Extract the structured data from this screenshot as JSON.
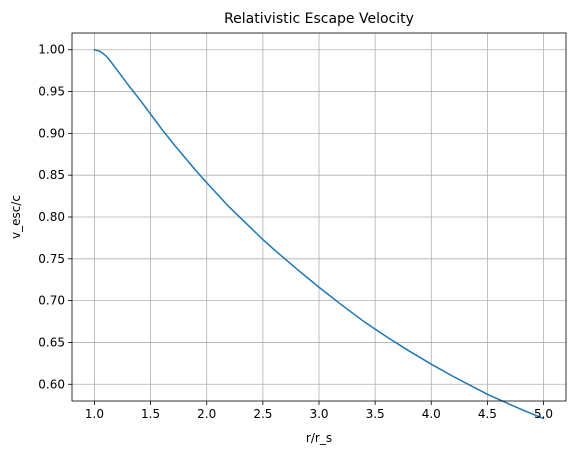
{
  "chart_data": {
    "type": "line",
    "title": "Relativistic Escape Velocity",
    "xlabel": "r/r_s",
    "ylabel": "v_esc/c",
    "xlim": [
      0.8,
      5.2
    ],
    "ylim": [
      0.58,
      1.02
    ],
    "grid": true,
    "x_ticks": [
      1.0,
      1.5,
      2.0,
      2.5,
      3.0,
      3.5,
      4.0,
      4.5,
      5.0
    ],
    "x_tick_labels": [
      "1.0",
      "1.5",
      "2.0",
      "2.5",
      "3.0",
      "3.5",
      "4.0",
      "4.5",
      "5.0"
    ],
    "y_ticks": [
      0.6,
      0.65,
      0.7,
      0.75,
      0.8,
      0.85,
      0.9,
      0.95,
      1.0
    ],
    "y_tick_labels": [
      "0.60",
      "0.65",
      "0.70",
      "0.75",
      "0.80",
      "0.85",
      "0.90",
      "0.95",
      "1.00"
    ],
    "series": [
      {
        "color": "#1f77b4",
        "x": [
          1.0,
          1.05,
          1.1,
          1.15,
          1.2,
          1.3,
          1.4,
          1.5,
          1.6,
          1.7,
          1.8,
          1.9,
          2.0,
          2.2,
          2.4,
          2.5,
          2.6,
          2.8,
          3.0,
          3.2,
          3.4,
          3.5,
          3.6,
          3.8,
          4.0,
          4.2,
          4.4,
          4.5,
          4.6,
          4.8,
          5.0
        ],
        "y": [
          1.0,
          0.998,
          0.993,
          0.985,
          0.976,
          0.958,
          0.941,
          0.923,
          0.905,
          0.888,
          0.872,
          0.856,
          0.841,
          0.812,
          0.786,
          0.773,
          0.761,
          0.738,
          0.716,
          0.695,
          0.675,
          0.666,
          0.657,
          0.64,
          0.624,
          0.609,
          0.595,
          0.588,
          0.582,
          0.57,
          0.559
        ]
      }
    ]
  }
}
